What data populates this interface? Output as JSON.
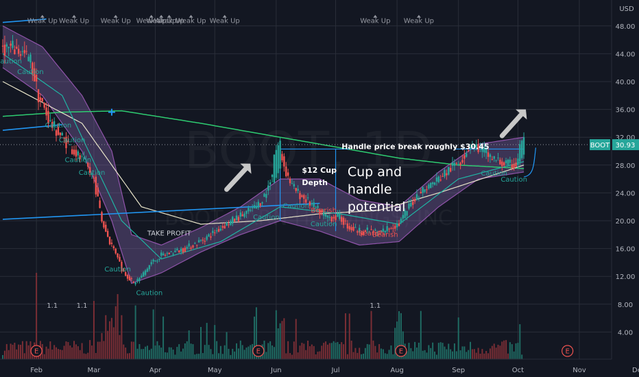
{
  "chart_data": {
    "type": "candlestick",
    "watermark": "BOOT, 1D",
    "watermark_sub": "BOOT BARN HOLDINGS, INC",
    "currency_label": "USD",
    "ticker_label": "BOOT",
    "last_price": 30.93,
    "last_price_label": "30.93",
    "ylim": [
      2.5,
      52
    ],
    "y_ticks": [
      {
        "value": 48,
        "label": "48.00"
      },
      {
        "value": 44,
        "label": "44.00"
      },
      {
        "value": 40,
        "label": "40.00"
      },
      {
        "value": 36,
        "label": "36.00"
      },
      {
        "value": 32,
        "label": "32.00"
      },
      {
        "value": 28,
        "label": "28.00"
      },
      {
        "value": 24,
        "label": "24.00"
      },
      {
        "value": 20,
        "label": "20.00"
      },
      {
        "value": 16,
        "label": "16.00"
      },
      {
        "value": 12,
        "label": "12.00"
      },
      {
        "value": 8,
        "label": "8.00"
      },
      {
        "value": 4,
        "label": "4.00"
      }
    ],
    "x_start_day": 0,
    "x_end_day": 285,
    "x_ticks": [
      {
        "day": 17,
        "label": "Feb"
      },
      {
        "day": 46,
        "label": "Mar"
      },
      {
        "day": 77,
        "label": "Apr"
      },
      {
        "day": 107,
        "label": "May"
      },
      {
        "day": 138,
        "label": "Jun"
      },
      {
        "day": 168,
        "label": "Jul"
      },
      {
        "day": 199,
        "label": "Aug"
      },
      {
        "day": 230,
        "label": "Sep"
      },
      {
        "day": 260,
        "label": "Oct"
      },
      {
        "day": 291,
        "label": "Nov"
      },
      {
        "day": 321,
        "label": "Dec"
      }
    ],
    "price_path": [
      [
        0,
        45
      ],
      [
        8,
        44.5
      ],
      [
        14,
        43
      ],
      [
        18,
        38
      ],
      [
        24,
        34
      ],
      [
        30,
        32
      ],
      [
        36,
        30
      ],
      [
        42,
        28
      ],
      [
        46,
        26
      ],
      [
        50,
        20
      ],
      [
        54,
        17
      ],
      [
        58,
        15
      ],
      [
        60,
        13
      ],
      [
        63,
        12
      ],
      [
        66,
        11
      ],
      [
        70,
        12
      ],
      [
        75,
        14
      ],
      [
        80,
        15
      ],
      [
        86,
        15.5
      ],
      [
        92,
        16
      ],
      [
        98,
        16.8
      ],
      [
        104,
        17.8
      ],
      [
        110,
        19
      ],
      [
        116,
        20
      ],
      [
        122,
        21
      ],
      [
        128,
        22
      ],
      [
        133,
        24
      ],
      [
        137,
        28
      ],
      [
        140,
        30
      ],
      [
        143,
        27
      ],
      [
        146,
        25
      ],
      [
        149,
        24
      ],
      [
        153,
        23
      ],
      [
        157,
        22
      ],
      [
        161,
        21
      ],
      [
        165,
        20.5
      ],
      [
        170,
        20.5
      ],
      [
        175,
        19
      ],
      [
        180,
        18.5
      ],
      [
        185,
        18.5
      ],
      [
        190,
        18.3
      ],
      [
        195,
        19
      ],
      [
        200,
        19.5
      ],
      [
        205,
        22
      ],
      [
        210,
        24
      ],
      [
        215,
        25
      ],
      [
        220,
        26
      ],
      [
        226,
        27.5
      ],
      [
        232,
        29
      ],
      [
        236,
        31
      ],
      [
        240,
        30.5
      ],
      [
        245,
        29.5
      ],
      [
        250,
        28.5
      ],
      [
        255,
        28
      ],
      [
        259,
        28
      ],
      [
        261,
        30.5
      ],
      [
        263,
        31.5
      ]
    ],
    "ema_long": [
      [
        0,
        35
      ],
      [
        30,
        35.6
      ],
      [
        60,
        35.8
      ],
      [
        100,
        34
      ],
      [
        150,
        31.5
      ],
      [
        200,
        29
      ],
      [
        230,
        28
      ],
      [
        263,
        27.5
      ]
    ],
    "sma_mid": [
      [
        0,
        40
      ],
      [
        40,
        34
      ],
      [
        70,
        22
      ],
      [
        100,
        19.5
      ],
      [
        130,
        20
      ],
      [
        160,
        21
      ],
      [
        190,
        21.5
      ],
      [
        220,
        24
      ],
      [
        263,
        28
      ]
    ],
    "sma_short": [
      [
        0,
        44
      ],
      [
        30,
        38
      ],
      [
        60,
        20
      ],
      [
        80,
        14.5
      ],
      [
        110,
        17
      ],
      [
        140,
        22
      ],
      [
        170,
        21
      ],
      [
        200,
        19.5
      ],
      [
        230,
        26
      ],
      [
        263,
        28.5
      ]
    ],
    "band_upper": [
      [
        0,
        48
      ],
      [
        20,
        45
      ],
      [
        40,
        38
      ],
      [
        55,
        30
      ],
      [
        65,
        18
      ],
      [
        80,
        16.5
      ],
      [
        100,
        19
      ],
      [
        120,
        22
      ],
      [
        140,
        26
      ],
      [
        160,
        26
      ],
      [
        180,
        23
      ],
      [
        200,
        22
      ],
      [
        220,
        27
      ],
      [
        240,
        31
      ],
      [
        263,
        32
      ]
    ],
    "band_lower": [
      [
        0,
        42
      ],
      [
        20,
        38
      ],
      [
        40,
        30
      ],
      [
        55,
        20
      ],
      [
        65,
        11
      ],
      [
        80,
        12.5
      ],
      [
        100,
        15.5
      ],
      [
        120,
        18
      ],
      [
        140,
        20
      ],
      [
        160,
        18.5
      ],
      [
        180,
        16.5
      ],
      [
        200,
        17
      ],
      [
        220,
        22
      ],
      [
        240,
        26
      ],
      [
        263,
        27
      ]
    ],
    "trend_lines": [
      {
        "from": [
          0,
          33
        ],
        "to": [
          30,
          33.8
        ],
        "color": "#2196f3"
      },
      {
        "from": [
          0,
          20.2
        ],
        "to": [
          160,
          22.5
        ],
        "color": "#2196f3"
      },
      {
        "from": [
          0,
          48.5
        ],
        "to": [
          22,
          49
        ],
        "color": "#2196f3"
      }
    ],
    "cup_lines": [
      {
        "from": [
          140,
          30.3
        ],
        "to": [
          175,
          30.3
        ]
      },
      {
        "from": [
          140,
          30.3
        ],
        "to": [
          140,
          20
        ]
      },
      {
        "from": [
          168,
          30.3
        ],
        "to": [
          168,
          18.5
        ]
      },
      {
        "from": [
          228,
          30.3
        ],
        "to": [
          263,
          30.3
        ]
      }
    ],
    "resistance_level": 30.93,
    "volume_bars_count": 263,
    "annotations": [
      {
        "text": "Handle price break roughly $30.45",
        "day": 171,
        "price": 30.3,
        "size": 11,
        "weight": "bold"
      },
      {
        "text": "$12 Cup",
        "day": 151,
        "price": 26.9,
        "size": 11,
        "weight": "bold"
      },
      {
        "text": "Depth",
        "day": 151,
        "price": 25.1,
        "size": 11,
        "weight": "bold"
      },
      {
        "text": "Cup and",
        "day": 174,
        "price": 26.4,
        "size": 19,
        "weight": "normal"
      },
      {
        "text": "handle",
        "day": 174,
        "price": 23.9,
        "size": 19,
        "weight": "normal"
      },
      {
        "text": "potential",
        "day": 174,
        "price": 21.4,
        "size": 19,
        "weight": "normal"
      }
    ],
    "arrows": [
      {
        "from": [
          113,
          24.5
        ],
        "to": [
          125,
          28.2
        ]
      },
      {
        "from": [
          252,
          32.2
        ],
        "to": [
          264,
          36
        ]
      }
    ],
    "weak_up_labels": [
      {
        "day": 20,
        "price": 48.4
      },
      {
        "day": 36,
        "price": 48.4
      },
      {
        "day": 57,
        "price": 48.4
      },
      {
        "day": 75,
        "price": 48.4
      },
      {
        "day": 80,
        "price": 48.4
      },
      {
        "day": 84,
        "price": 48.4
      },
      {
        "day": 95,
        "price": 48.4
      },
      {
        "day": 112,
        "price": 48.4
      },
      {
        "day": 188,
        "price": 48.4
      },
      {
        "day": 210,
        "price": 48.4
      }
    ],
    "weak_up_text": "Weak Up",
    "caution_labels": [
      {
        "day": 3,
        "price": 42.6
      },
      {
        "day": 14,
        "price": 41.1
      },
      {
        "day": 28,
        "price": 33.4
      },
      {
        "day": 35,
        "price": 31.3
      },
      {
        "day": 38,
        "price": 28.4
      },
      {
        "day": 45,
        "price": 26.6
      },
      {
        "day": 58,
        "price": 12.7
      },
      {
        "day": 74,
        "price": 9.3
      },
      {
        "day": 148,
        "price": 21.8
      },
      {
        "day": 133,
        "price": 20.2
      },
      {
        "day": 162,
        "price": 19.2
      },
      {
        "day": 248,
        "price": 26.5
      },
      {
        "day": 258,
        "price": 25.6
      }
    ],
    "caution_text": "Caution",
    "bearish_labels": [
      {
        "day": 162,
        "price": 21.2
      },
      {
        "day": 186,
        "price": 17.9
      },
      {
        "day": 193,
        "price": 17.7
      }
    ],
    "bearish_text": "Bearish",
    "take_profit": {
      "text": "TAKE PROFIT",
      "day": 84,
      "price": 17.9
    },
    "earnings_markers": [
      {
        "day": 17,
        "label": "E"
      },
      {
        "day": 129,
        "label": "E"
      },
      {
        "day": 201,
        "label": "E"
      },
      {
        "day": 285,
        "label": "E"
      }
    ],
    "small_number_labels": [
      {
        "day": 25,
        "text": "1.1"
      },
      {
        "day": 40,
        "text": "1.1"
      },
      {
        "day": 188,
        "text": "1.1"
      }
    ],
    "colors": {
      "background": "#131722",
      "grid": "#2a2e39",
      "up": "#26a69a",
      "down": "#ef5350",
      "volume_up": "#1f6b63",
      "volume_down": "#7a2e35",
      "band_fill": "#8a6bb5",
      "band_line": "#9b59b6",
      "ema_long": "#2ecc71",
      "sma_mid": "#e8e4c9",
      "sma_short": "#1fb5a4",
      "trend": "#2196f3",
      "annotation": "#ffffff",
      "arrow": "#c8c8c8",
      "caution": "#26a69a",
      "weak_up": "#9598a1",
      "bearish": "#ef5350",
      "earnings": "#ef5350",
      "ticker_tag": "#26a69a",
      "axis_text": "#b2b5be"
    }
  }
}
